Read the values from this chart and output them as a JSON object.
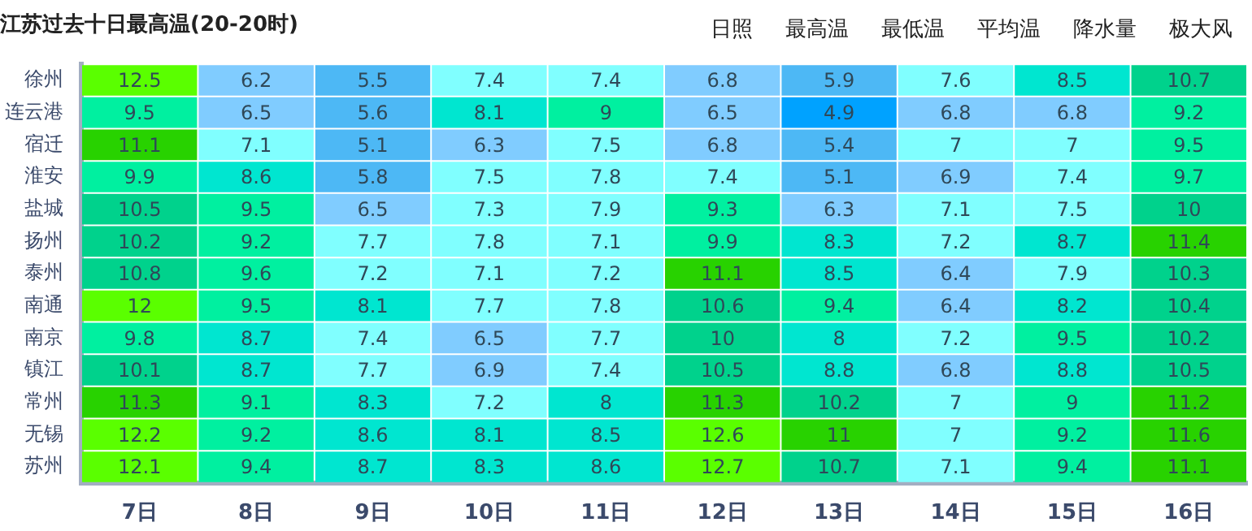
{
  "chart_data": {
    "type": "heatmap",
    "title": "江苏过去十日最高温(20-20时)",
    "data_labels": true,
    "annotations": [
      "日照",
      "最高温",
      "最低温",
      "平均温",
      "降水量",
      "极大风"
    ],
    "categories": [
      "7日",
      "8日",
      "9日",
      "10日",
      "11日",
      "12日",
      "13日",
      "14日",
      "15日",
      "16日"
    ],
    "y_categories": [
      "徐州",
      "连云港",
      "宿迁",
      "淮安",
      "盐城",
      "扬州",
      "泰州",
      "南通",
      "南京",
      "镇江",
      "常州",
      "无锡",
      "苏州"
    ],
    "cells": [
      [
        12.5,
        6.2,
        5.5,
        7.4,
        7.4,
        6.8,
        5.9,
        7.6,
        8.5,
        10.7
      ],
      [
        9.5,
        6.5,
        5.6,
        8.1,
        9,
        6.5,
        4.9,
        6.8,
        6.8,
        9.2
      ],
      [
        11.1,
        7.1,
        5.1,
        6.3,
        7.5,
        6.8,
        5.4,
        7,
        7,
        9.5
      ],
      [
        9.9,
        8.6,
        5.8,
        7.5,
        7.8,
        7.4,
        5.1,
        6.9,
        7.4,
        9.7
      ],
      [
        10.5,
        9.5,
        6.5,
        7.3,
        7.9,
        9.3,
        6.3,
        7.1,
        7.5,
        10
      ],
      [
        10.2,
        9.2,
        7.7,
        7.8,
        7.1,
        9.9,
        8.3,
        7.2,
        8.7,
        11.4
      ],
      [
        10.8,
        9.6,
        7.2,
        7.1,
        7.2,
        11.1,
        8.5,
        6.4,
        7.9,
        10.3
      ],
      [
        12,
        9.5,
        8.1,
        7.7,
        7.8,
        10.6,
        9.4,
        6.4,
        8.2,
        10.4
      ],
      [
        9.8,
        8.7,
        7.4,
        6.5,
        7.7,
        10,
        8,
        7.2,
        9.5,
        10.2
      ],
      [
        10.1,
        8.7,
        7.7,
        6.9,
        7.4,
        10.5,
        8.8,
        6.8,
        8.8,
        10.5
      ],
      [
        11.3,
        9.1,
        8.3,
        7.2,
        8,
        11.3,
        10.2,
        7,
        9,
        11.2
      ],
      [
        12.2,
        9.2,
        8.6,
        8.1,
        8.5,
        12.6,
        11,
        7,
        9.2,
        11.6
      ],
      [
        12.1,
        9.4,
        8.7,
        8.3,
        8.6,
        12.7,
        10.7,
        7.1,
        9.4,
        11.1
      ]
    ]
  }
}
